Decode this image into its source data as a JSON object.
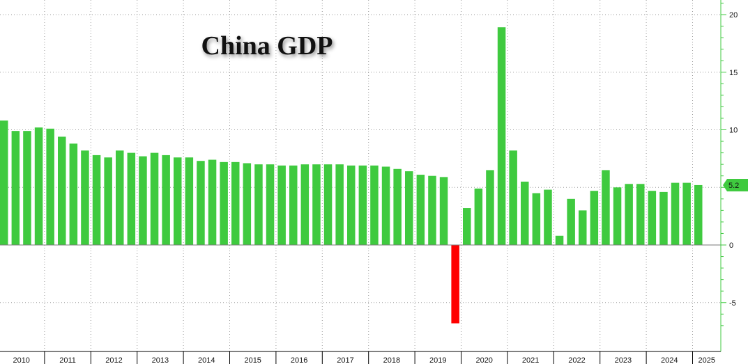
{
  "chart_data": {
    "type": "bar",
    "title": "China GDP",
    "xlabel": "",
    "ylabel": "",
    "ylim": [
      -8,
      21
    ],
    "yticks": [
      -5,
      0,
      5,
      10,
      15,
      20
    ],
    "ytick_labels": [
      "-5",
      "0",
      "5",
      "10",
      "15",
      "20"
    ],
    "grid": true,
    "y_axis_side": "right",
    "colors": {
      "positive": "#3fca3f",
      "negative": "#ff0000",
      "badge": "#3fca3f",
      "grid": "#9a9a9a"
    },
    "last_value_label": "5.2",
    "years": [
      "2010",
      "2011",
      "2012",
      "2013",
      "2014",
      "2015",
      "2016",
      "2017",
      "2018",
      "2019",
      "2020",
      "2021",
      "2022",
      "2023",
      "2024",
      "2025"
    ],
    "values": [
      10.8,
      9.9,
      9.9,
      10.2,
      10.1,
      9.4,
      8.8,
      8.2,
      7.8,
      7.6,
      8.2,
      8.0,
      7.7,
      8.0,
      7.8,
      7.6,
      7.6,
      7.3,
      7.4,
      7.2,
      7.2,
      7.1,
      7.0,
      7.0,
      6.9,
      6.9,
      7.0,
      7.0,
      7.0,
      7.0,
      6.9,
      6.9,
      6.9,
      6.8,
      6.6,
      6.4,
      6.1,
      6.0,
      5.9,
      -6.8,
      3.2,
      4.9,
      6.5,
      18.9,
      8.2,
      5.5,
      4.5,
      4.8,
      0.8,
      4.0,
      3.0,
      4.7,
      6.5,
      5.0,
      5.3,
      5.3,
      4.7,
      4.6,
      5.4,
      5.4,
      5.2
    ]
  }
}
